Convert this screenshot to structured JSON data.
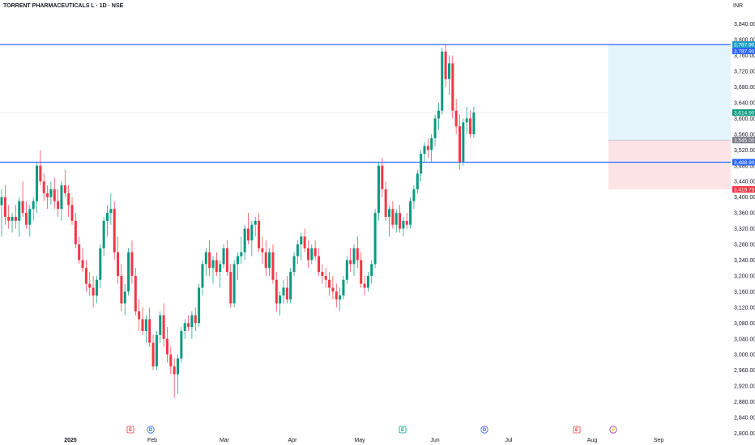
{
  "header": {
    "title": "TORRENT PHARMACEUTICALS L · 1D · NSE",
    "currency": "INR"
  },
  "chart_data": {
    "type": "candlestick",
    "title": "TORRENT PHARMACEUTICALS L · 1D · NSE",
    "ylim": [
      2800,
      3860
    ],
    "y_ticks": [
      3840,
      3800,
      3760,
      3720,
      3680,
      3640,
      3600,
      3560,
      3520,
      3480,
      3440,
      3400,
      3360,
      3320,
      3280,
      3240,
      3200,
      3160,
      3120,
      3080,
      3040,
      3000,
      2960,
      2920,
      2880,
      2840,
      2800
    ],
    "x_ticks": [
      "2025",
      "Feb",
      "Mar",
      "Apr",
      "May",
      "Jun",
      "Jul",
      "Aug",
      "Sep"
    ],
    "horizontal_lines": [
      {
        "value": 3787.9,
        "label": "3,787.90"
      },
      {
        "value": 3488.9,
        "label": "3,488.90"
      }
    ],
    "price_tags": [
      {
        "value": 3787.9,
        "label": "3,787.90",
        "color": "#1a9ec9"
      },
      {
        "value": 3787.9,
        "label": "3,787.90",
        "color": "#2962ff"
      },
      {
        "value": 3614.9,
        "label": "3,614.90",
        "color": "#089981"
      },
      {
        "value": 3545.0,
        "label": "3,545.00",
        "color": "#787b86"
      },
      {
        "value": 3488.9,
        "label": "3,488.90",
        "color": "#2962ff"
      },
      {
        "value": 3419.75,
        "label": "3,419.75",
        "color": "#f23645"
      }
    ],
    "position_tool": {
      "entry": 3545.0,
      "target": 3787.9,
      "stop": 3419.75,
      "profit_color": "#e3f5fb",
      "loss_color": "#fce3e6"
    },
    "events": [
      {
        "label": "E",
        "type": "earnings",
        "color": "#f23645",
        "at": "Jan"
      },
      {
        "label": "D",
        "type": "dividend",
        "color": "#2962ff",
        "at": "Jan"
      },
      {
        "label": "E",
        "type": "earnings",
        "color": "#089981",
        "at": "May"
      },
      {
        "label": "D",
        "type": "dividend",
        "color": "#2962ff",
        "at": "Jun"
      },
      {
        "label": "E",
        "type": "earnings",
        "color": "#f23645",
        "at": "Jul"
      },
      {
        "label": "⚡",
        "type": "split",
        "color": "#9c27b0",
        "at": "Aug"
      }
    ],
    "up_color": "#089981",
    "down_color": "#f23645",
    "candles": [
      [
        3380,
        3420,
        3300,
        3400
      ],
      [
        3400,
        3430,
        3330,
        3350
      ],
      [
        3350,
        3380,
        3320,
        3340
      ],
      [
        3340,
        3360,
        3310,
        3350
      ],
      [
        3350,
        3380,
        3320,
        3340
      ],
      [
        3340,
        3400,
        3300,
        3390
      ],
      [
        3390,
        3440,
        3350,
        3360
      ],
      [
        3360,
        3390,
        3320,
        3330
      ],
      [
        3330,
        3380,
        3300,
        3370
      ],
      [
        3370,
        3400,
        3340,
        3390
      ],
      [
        3390,
        3490,
        3360,
        3480
      ],
      [
        3480,
        3520,
        3430,
        3440
      ],
      [
        3440,
        3460,
        3390,
        3410
      ],
      [
        3410,
        3430,
        3370,
        3400
      ],
      [
        3400,
        3440,
        3380,
        3420
      ],
      [
        3420,
        3450,
        3370,
        3390
      ],
      [
        3390,
        3420,
        3350,
        3370
      ],
      [
        3370,
        3440,
        3340,
        3430
      ],
      [
        3430,
        3470,
        3400,
        3410
      ],
      [
        3410,
        3430,
        3350,
        3380
      ],
      [
        3380,
        3400,
        3330,
        3340
      ],
      [
        3340,
        3360,
        3270,
        3280
      ],
      [
        3280,
        3300,
        3230,
        3240
      ],
      [
        3240,
        3270,
        3210,
        3220
      ],
      [
        3220,
        3240,
        3160,
        3180
      ],
      [
        3180,
        3210,
        3150,
        3170
      ],
      [
        3170,
        3200,
        3120,
        3150
      ],
      [
        3150,
        3200,
        3130,
        3190
      ],
      [
        3190,
        3280,
        3170,
        3270
      ],
      [
        3270,
        3350,
        3250,
        3340
      ],
      [
        3340,
        3380,
        3300,
        3360
      ],
      [
        3360,
        3410,
        3330,
        3370
      ],
      [
        3370,
        3390,
        3240,
        3260
      ],
      [
        3260,
        3300,
        3180,
        3200
      ],
      [
        3200,
        3230,
        3110,
        3130
      ],
      [
        3130,
        3180,
        3100,
        3160
      ],
      [
        3160,
        3270,
        3150,
        3260
      ],
      [
        3260,
        3290,
        3180,
        3200
      ],
      [
        3200,
        3220,
        3100,
        3110
      ],
      [
        3110,
        3140,
        3060,
        3090
      ],
      [
        3090,
        3120,
        3050,
        3060
      ],
      [
        3060,
        3100,
        3030,
        3090
      ],
      [
        3090,
        3120,
        3020,
        3030
      ],
      [
        3030,
        3050,
        2960,
        2970
      ],
      [
        2970,
        3060,
        2960,
        3050
      ],
      [
        3050,
        3110,
        3030,
        3100
      ],
      [
        3100,
        3130,
        3020,
        3040
      ],
      [
        3040,
        3070,
        2980,
        3000
      ],
      [
        3000,
        3020,
        2950,
        2970
      ],
      [
        2970,
        2990,
        2890,
        2950
      ],
      [
        2950,
        3000,
        2900,
        2990
      ],
      [
        2990,
        3070,
        2980,
        3060
      ],
      [
        3060,
        3090,
        3040,
        3080
      ],
      [
        3080,
        3100,
        3060,
        3070
      ],
      [
        3070,
        3110,
        3040,
        3100
      ],
      [
        3100,
        3120,
        3060,
        3080
      ],
      [
        3080,
        3180,
        3070,
        3170
      ],
      [
        3170,
        3240,
        3150,
        3230
      ],
      [
        3230,
        3270,
        3200,
        3260
      ],
      [
        3260,
        3290,
        3200,
        3220
      ],
      [
        3220,
        3250,
        3180,
        3240
      ],
      [
        3240,
        3260,
        3200,
        3210
      ],
      [
        3210,
        3240,
        3170,
        3230
      ],
      [
        3230,
        3280,
        3220,
        3270
      ],
      [
        3270,
        3290,
        3200,
        3210
      ],
      [
        3210,
        3230,
        3120,
        3130
      ],
      [
        3130,
        3240,
        3120,
        3230
      ],
      [
        3230,
        3260,
        3190,
        3250
      ],
      [
        3250,
        3300,
        3230,
        3260
      ],
      [
        3260,
        3330,
        3240,
        3320
      ],
      [
        3320,
        3360,
        3280,
        3290
      ],
      [
        3290,
        3340,
        3250,
        3330
      ],
      [
        3330,
        3350,
        3300,
        3340
      ],
      [
        3340,
        3360,
        3260,
        3270
      ],
      [
        3270,
        3300,
        3230,
        3260
      ],
      [
        3260,
        3290,
        3200,
        3220
      ],
      [
        3220,
        3270,
        3200,
        3260
      ],
      [
        3260,
        3280,
        3180,
        3190
      ],
      [
        3190,
        3210,
        3110,
        3130
      ],
      [
        3130,
        3160,
        3100,
        3150
      ],
      [
        3150,
        3190,
        3130,
        3170
      ],
      [
        3170,
        3200,
        3130,
        3140
      ],
      [
        3140,
        3220,
        3130,
        3210
      ],
      [
        3210,
        3260,
        3200,
        3250
      ],
      [
        3250,
        3290,
        3230,
        3280
      ],
      [
        3280,
        3310,
        3240,
        3300
      ],
      [
        3300,
        3320,
        3260,
        3270
      ],
      [
        3270,
        3290,
        3220,
        3240
      ],
      [
        3240,
        3280,
        3230,
        3270
      ],
      [
        3270,
        3290,
        3240,
        3250
      ],
      [
        3250,
        3270,
        3200,
        3210
      ],
      [
        3210,
        3230,
        3180,
        3200
      ],
      [
        3200,
        3220,
        3170,
        3190
      ],
      [
        3190,
        3210,
        3150,
        3170
      ],
      [
        3170,
        3200,
        3140,
        3160
      ],
      [
        3160,
        3180,
        3120,
        3140
      ],
      [
        3140,
        3170,
        3110,
        3150
      ],
      [
        3150,
        3200,
        3140,
        3190
      ],
      [
        3190,
        3250,
        3180,
        3240
      ],
      [
        3240,
        3270,
        3210,
        3230
      ],
      [
        3230,
        3280,
        3200,
        3270
      ],
      [
        3270,
        3300,
        3220,
        3240
      ],
      [
        3240,
        3260,
        3170,
        3180
      ],
      [
        3180,
        3200,
        3150,
        3170
      ],
      [
        3170,
        3210,
        3160,
        3200
      ],
      [
        3200,
        3240,
        3180,
        3230
      ],
      [
        3230,
        3370,
        3220,
        3360
      ],
      [
        3360,
        3490,
        3340,
        3480
      ],
      [
        3480,
        3500,
        3400,
        3420
      ],
      [
        3420,
        3440,
        3340,
        3350
      ],
      [
        3350,
        3380,
        3300,
        3370
      ],
      [
        3370,
        3390,
        3320,
        3330
      ],
      [
        3330,
        3370,
        3310,
        3360
      ],
      [
        3360,
        3380,
        3310,
        3320
      ],
      [
        3320,
        3350,
        3300,
        3340
      ],
      [
        3340,
        3360,
        3320,
        3330
      ],
      [
        3330,
        3400,
        3320,
        3390
      ],
      [
        3390,
        3430,
        3370,
        3420
      ],
      [
        3420,
        3470,
        3410,
        3460
      ],
      [
        3460,
        3520,
        3440,
        3510
      ],
      [
        3510,
        3540,
        3490,
        3530
      ],
      [
        3530,
        3550,
        3500,
        3520
      ],
      [
        3520,
        3560,
        3490,
        3550
      ],
      [
        3550,
        3610,
        3530,
        3600
      ],
      [
        3600,
        3640,
        3570,
        3620
      ],
      [
        3620,
        3780,
        3610,
        3770
      ],
      [
        3770,
        3790,
        3680,
        3700
      ],
      [
        3700,
        3760,
        3660,
        3740
      ],
      [
        3740,
        3760,
        3600,
        3620
      ],
      [
        3620,
        3650,
        3560,
        3580
      ],
      [
        3580,
        3610,
        3470,
        3490
      ],
      [
        3490,
        3600,
        3480,
        3590
      ],
      [
        3590,
        3630,
        3560,
        3600
      ],
      [
        3600,
        3620,
        3550,
        3560
      ],
      [
        3560,
        3630,
        3550,
        3614.9
      ]
    ]
  }
}
